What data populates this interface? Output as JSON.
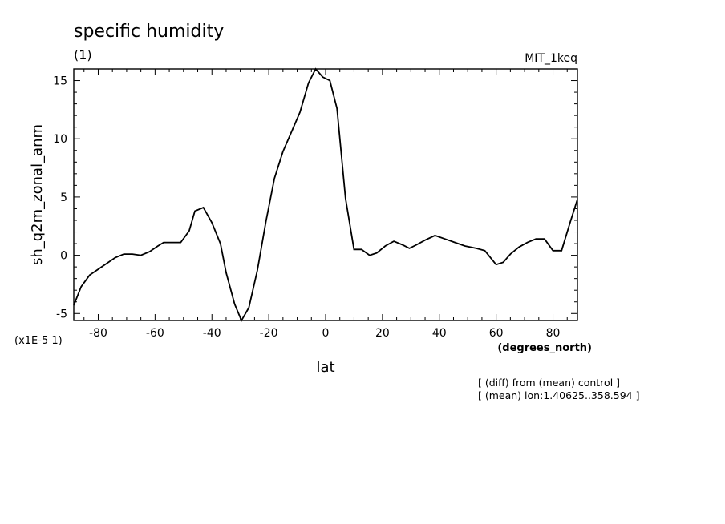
{
  "chart_data": {
    "type": "line",
    "title": "specific humidity",
    "subtitle": "(1)",
    "model_label": "MIT_1keq",
    "xlabel": "lat",
    "xunit": "(degrees_north)",
    "ylabel": "sh_q2m_zonal_anm",
    "yscale_label": "(x1E-5 1)",
    "xlim": [
      -88.6,
      88.6
    ],
    "ylim": [
      -5.6,
      16
    ],
    "xticks": [
      -80,
      -60,
      -40,
      -20,
      0,
      20,
      40,
      60,
      80
    ],
    "xtick_labels": [
      "-80",
      "-60",
      "-40",
      "-20",
      "0",
      "20",
      "40",
      "60",
      "80"
    ],
    "yticks": [
      -5,
      0,
      5,
      10,
      15
    ],
    "ytick_labels": [
      "-5",
      "0",
      "5",
      "10",
      "15"
    ],
    "grid": false,
    "notes": [
      "[ (diff) from (mean) control ]",
      "[ (mean) lon:1.40625..358.594 ]"
    ],
    "series": [
      {
        "x": [
          -88.6,
          -86,
          -83,
          -80,
          -77,
          -74,
          -71,
          -68,
          -65,
          -62,
          -59,
          -57,
          -54,
          -51,
          -48,
          -46,
          -43,
          -40,
          -37,
          -35,
          -32,
          -29.6,
          -27,
          -24,
          -21,
          -18,
          -15,
          -12,
          -9,
          -6,
          -3.5,
          -1,
          1.5,
          4,
          7,
          10,
          12.6,
          15.5,
          18,
          21,
          24,
          27,
          29.5,
          32,
          35,
          38.5,
          42,
          45.5,
          49,
          53,
          56,
          60,
          62.5,
          65,
          68,
          71,
          74,
          77,
          80,
          83,
          86,
          88.6
        ],
        "y": [
          -4.3,
          -2.7,
          -1.7,
          -1.2,
          -0.7,
          -0.2,
          0.1,
          0.1,
          0,
          0.3,
          0.8,
          1.1,
          1.1,
          1.1,
          2.1,
          3.8,
          4.1,
          2.8,
          1.0,
          -1.5,
          -4.2,
          -5.6,
          -4.5,
          -1.3,
          2.9,
          6.6,
          8.9,
          10.6,
          12.3,
          14.8,
          16.0,
          15.3,
          15.0,
          12.6,
          4.9,
          0.5,
          0.5,
          0.0,
          0.2,
          0.8,
          1.2,
          0.9,
          0.6,
          0.9,
          1.3,
          1.7,
          1.4,
          1.1,
          0.8,
          0.6,
          0.4,
          -0.8,
          -0.6,
          0.1,
          0.7,
          1.1,
          1.4,
          1.4,
          0.4,
          0.4,
          2.8,
          4.8
        ]
      }
    ]
  }
}
